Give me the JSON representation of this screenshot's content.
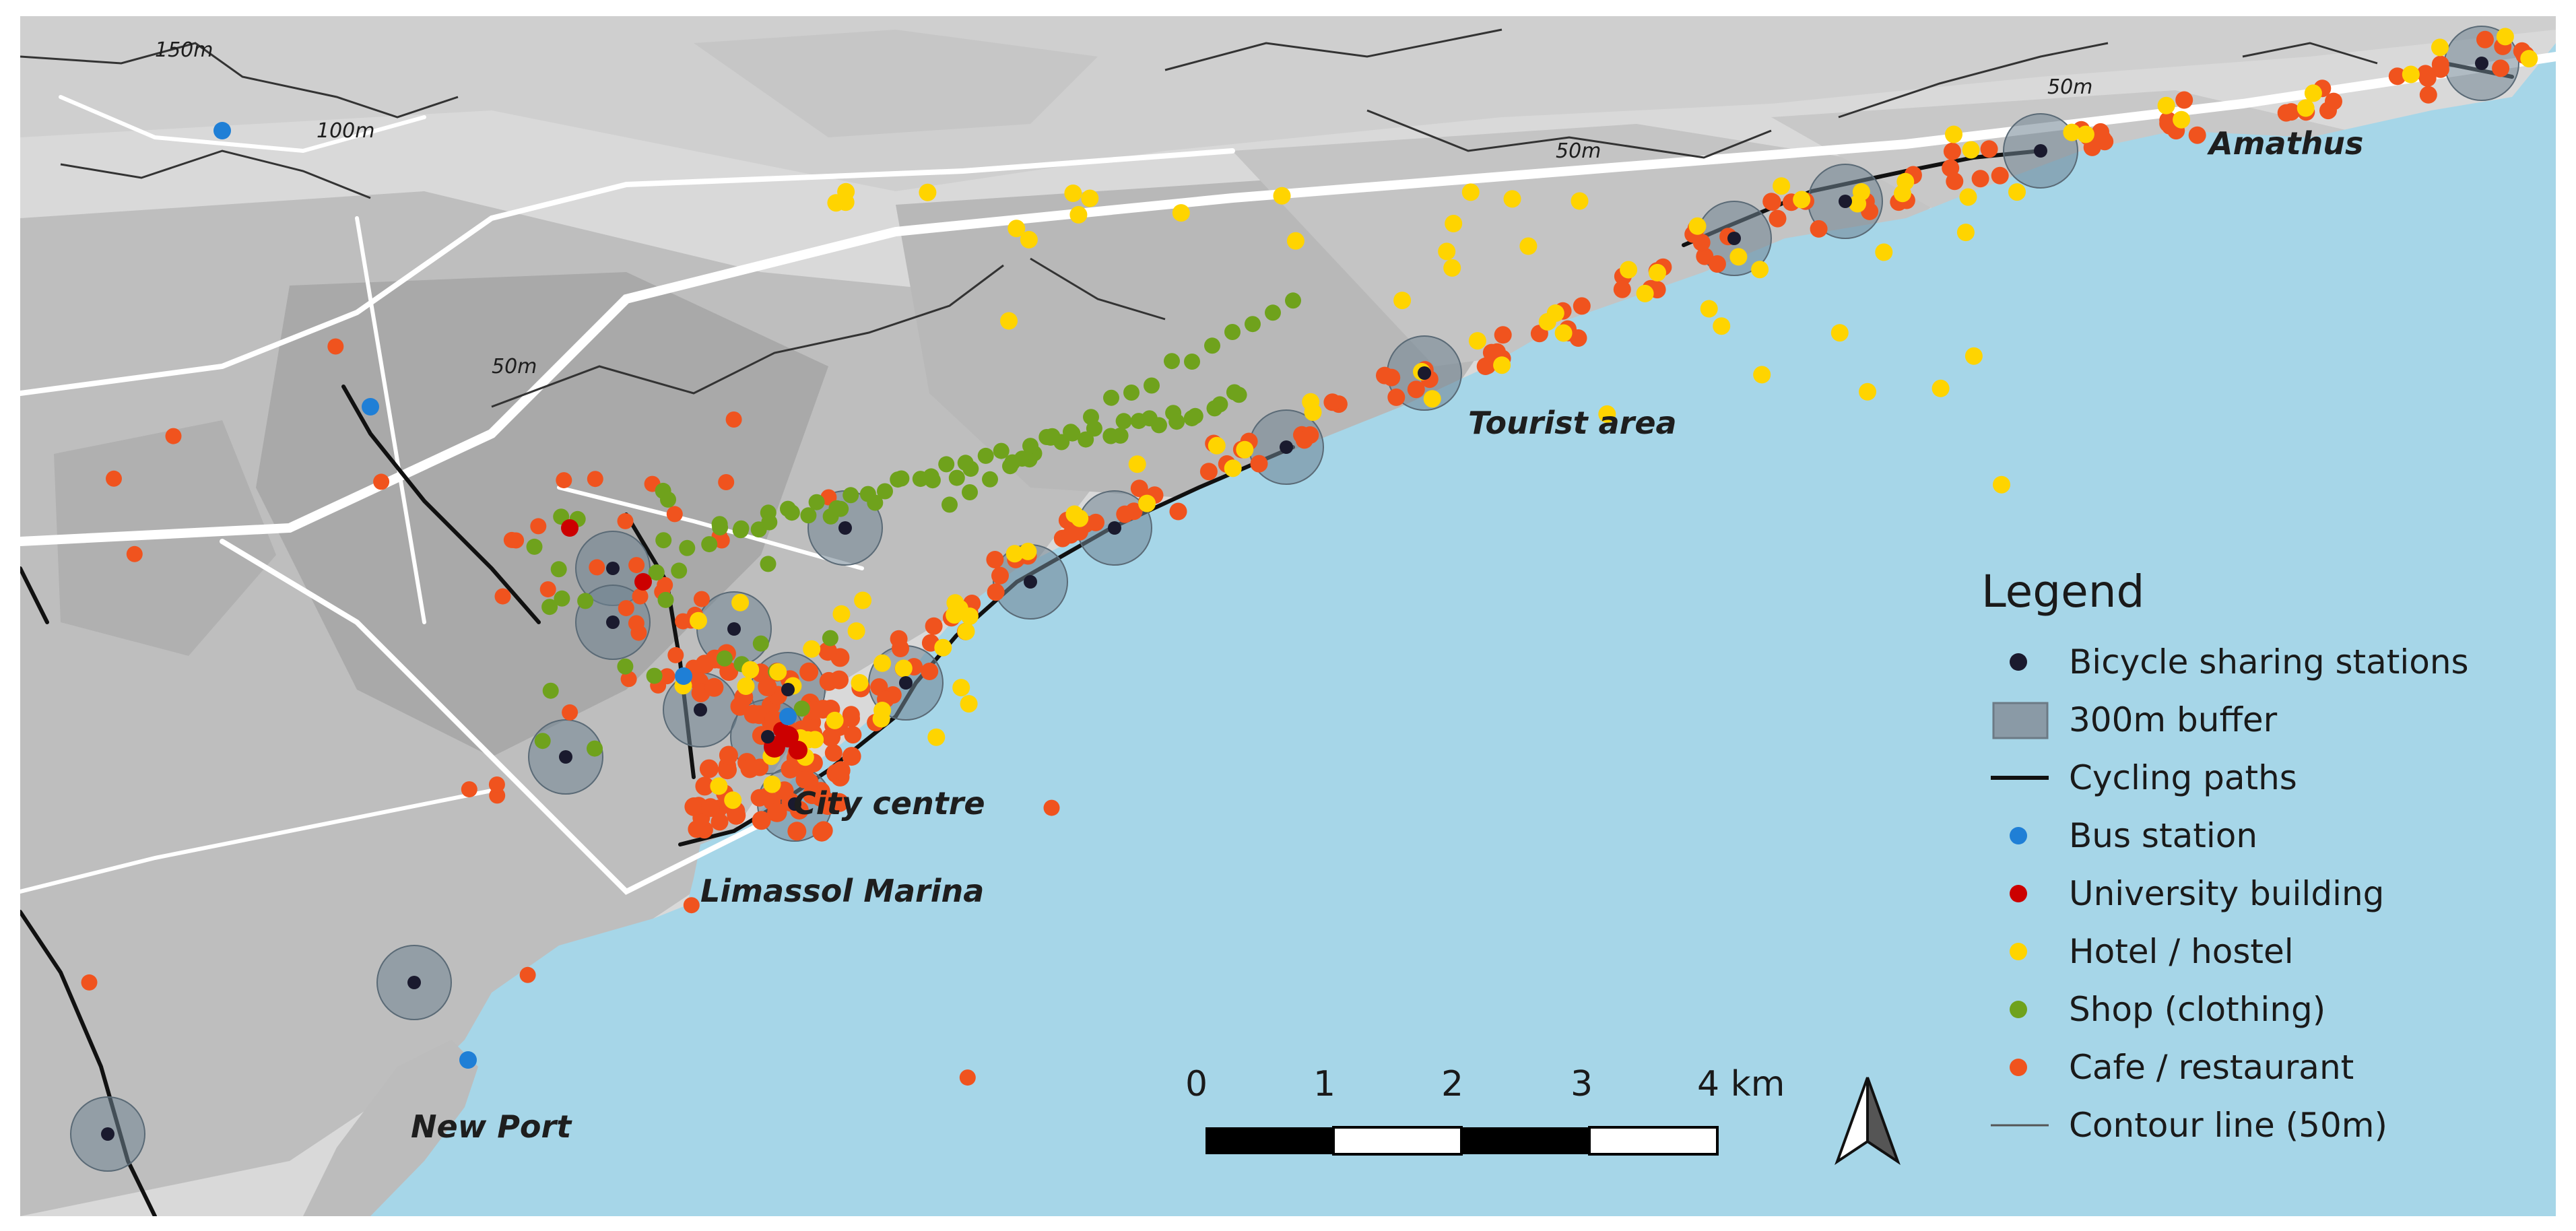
{
  "map": {
    "place_labels": [
      "Amathus",
      "Tourist area",
      "City centre",
      "Limassol Marina",
      "New Port"
    ],
    "contour_labels": [
      "150m",
      "100m",
      "50m",
      "50m",
      "50m"
    ],
    "colors": {
      "sea": "#a6d6e8",
      "land": "#d9d9d9",
      "buildings": "#b3b3b3",
      "roads": "#ffffff",
      "contour": "#333333",
      "cycling_path": "#111111",
      "buffer": "#7a8c99"
    }
  },
  "legend": {
    "title": "Legend",
    "items": [
      {
        "label": "Bicycle sharing stations",
        "symbol": "dot",
        "color": "#1a1a2e"
      },
      {
        "label": "300m buffer",
        "symbol": "box",
        "color": "#8a9aa6"
      },
      {
        "label": "Cycling paths",
        "symbol": "line",
        "color": "#111111"
      },
      {
        "label": "Bus station",
        "symbol": "dot",
        "color": "#1f7fd6"
      },
      {
        "label": "University building",
        "symbol": "dot",
        "color": "#cc0000"
      },
      {
        "label": "Hotel / hostel",
        "symbol": "dot",
        "color": "#ffd400"
      },
      {
        "label": "Shop (clothing)",
        "symbol": "dot",
        "color": "#6fa21c"
      },
      {
        "label": "Cafe / restaurant",
        "symbol": "dot",
        "color": "#f0531e"
      },
      {
        "label": "Contour line (50m)",
        "symbol": "thinline",
        "color": "#555555"
      }
    ]
  },
  "scalebar": {
    "ticks": [
      "0",
      "1",
      "2",
      "3",
      "4 km"
    ]
  },
  "north_arrow": {
    "icon": "north-arrow-icon"
  }
}
